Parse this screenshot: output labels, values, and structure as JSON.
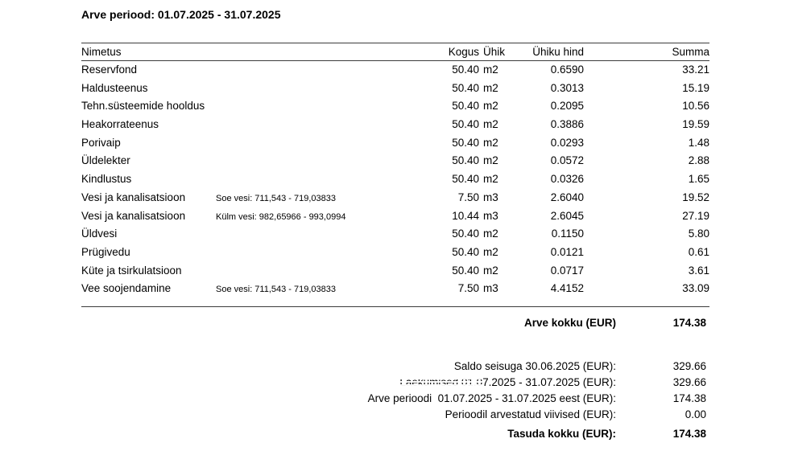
{
  "title": "Arve periood: 01.07.2025 - 31.07.2025",
  "table": {
    "headers": {
      "name": "Nimetus",
      "qty": "Kogus",
      "unit": "Ühik",
      "unit_price": "Ühiku hind",
      "sum": "Summa"
    },
    "rows": [
      {
        "name": "Reservfond",
        "note": "",
        "qty": "50.40",
        "unit": "m2",
        "unit_price": "0.6590",
        "sum": "33.21"
      },
      {
        "name": "Haldusteenus",
        "note": "",
        "qty": "50.40",
        "unit": "m2",
        "unit_price": "0.3013",
        "sum": "15.19"
      },
      {
        "name": "Tehn.süsteemide hooldus",
        "note": "",
        "qty": "50.40",
        "unit": "m2",
        "unit_price": "0.2095",
        "sum": "10.56"
      },
      {
        "name": "Heakorrateenus",
        "note": "",
        "qty": "50.40",
        "unit": "m2",
        "unit_price": "0.3886",
        "sum": "19.59"
      },
      {
        "name": "Porivaip",
        "note": "",
        "qty": "50.40",
        "unit": "m2",
        "unit_price": "0.0293",
        "sum": "1.48"
      },
      {
        "name": "Üldelekter",
        "note": "",
        "qty": "50.40",
        "unit": "m2",
        "unit_price": "0.0572",
        "sum": "2.88"
      },
      {
        "name": "Kindlustus",
        "note": "",
        "qty": "50.40",
        "unit": "m2",
        "unit_price": "0.0326",
        "sum": "1.65"
      },
      {
        "name": "Vesi ja kanalisatsioon",
        "note": "Soe vesi: 711,543 - 719,03833",
        "qty": "7.50",
        "unit": "m3",
        "unit_price": "2.6040",
        "sum": "19.52"
      },
      {
        "name": "Vesi ja kanalisatsioon",
        "note": "Külm vesi: 982,65966 - 993,0994",
        "qty": "10.44",
        "unit": "m3",
        "unit_price": "2.6045",
        "sum": "27.19"
      },
      {
        "name": "Üldvesi",
        "note": "",
        "qty": "50.40",
        "unit": "m2",
        "unit_price": "0.1150",
        "sum": "5.80"
      },
      {
        "name": "Prügivedu",
        "note": "",
        "qty": "50.40",
        "unit": "m2",
        "unit_price": "0.0121",
        "sum": "0.61"
      },
      {
        "name": "Küte ja tsirkulatsioon",
        "note": "",
        "qty": "50.40",
        "unit": "m2",
        "unit_price": "0.0717",
        "sum": "3.61"
      },
      {
        "name": "Vee soojendamine",
        "note": "Soe vesi: 711,543 - 719,03833",
        "qty": "7.50",
        "unit": "m3",
        "unit_price": "4.4152",
        "sum": "33.09"
      }
    ],
    "total_label": "Arve kokku (EUR)",
    "total_value": "174.38"
  },
  "summary": {
    "rows": [
      {
        "label": "Saldo seisuga 30.06.2025 (EUR):",
        "value": "329.66"
      },
      {
        "label_glitch": "Laekumised 01.0",
        "label_rest": "7.2025 - 31.07.2025 (EUR):",
        "value": "329.66"
      },
      {
        "label": "Arve perioodi  01.07.2025 - 31.07.2025 eest (EUR):",
        "value": "174.38"
      },
      {
        "label": "Perioodil arvestatud viivised (EUR):",
        "value": "0.00"
      }
    ],
    "total_label": "Tasuda kokku (EUR):",
    "total_value": "174.38"
  },
  "colors": {
    "background": "#ffffff",
    "text": "#000000",
    "rule": "#3c3c3c"
  }
}
